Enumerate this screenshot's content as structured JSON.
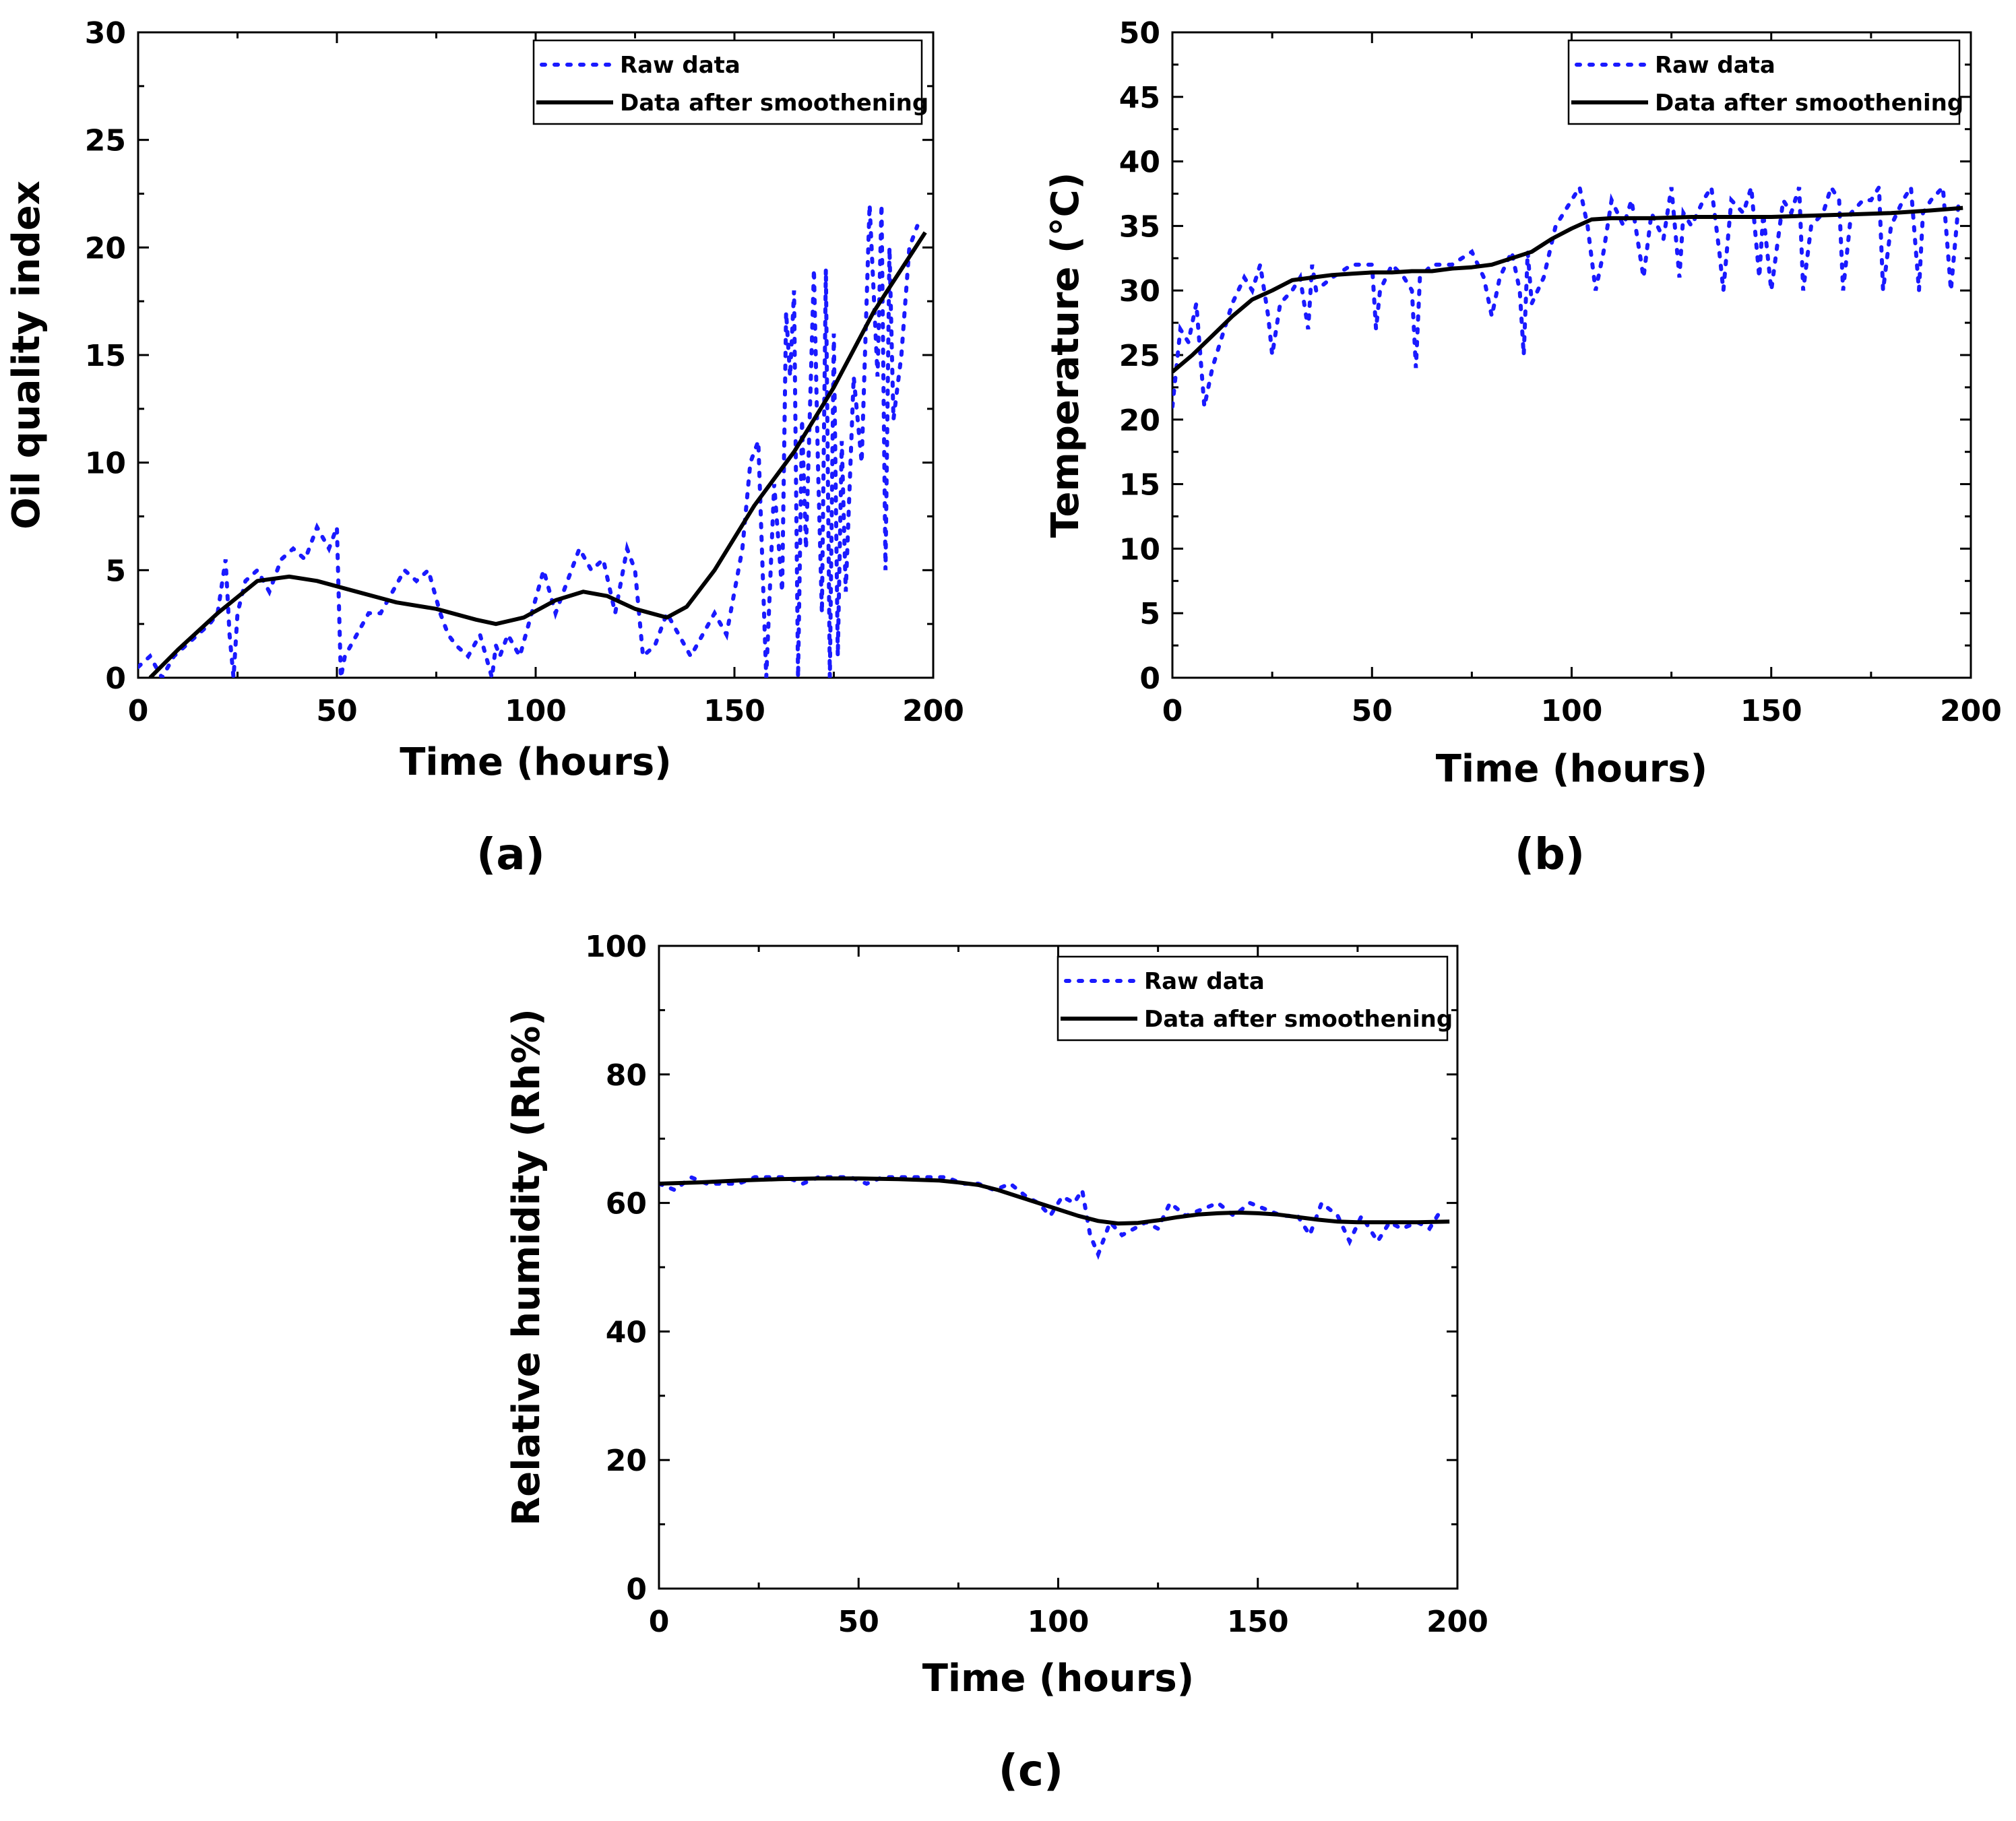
{
  "chart_data": [
    {
      "type": "line",
      "panel_label": "(a)",
      "xlabel": "Time (hours)",
      "ylabel": "Oil quality index",
      "xlim": [
        0,
        200
      ],
      "ylim": [
        0,
        30
      ],
      "xticks": [
        0,
        50,
        100,
        150,
        200
      ],
      "yticks": [
        0,
        5,
        10,
        15,
        20,
        25,
        30
      ],
      "legend": {
        "placement": "top-right",
        "raw_label": "Raw data",
        "smooth_label": "Data after smoothening"
      },
      "colors": {
        "raw": "#1a1aff",
        "smooth": "#000000"
      },
      "series": [
        {
          "name": "Raw data",
          "x": [
            0,
            3,
            6,
            9,
            12,
            15,
            18,
            20,
            22,
            23,
            24,
            25,
            27,
            30,
            33,
            36,
            39,
            42,
            45,
            48,
            50,
            51,
            52,
            55,
            58,
            61,
            64,
            67,
            70,
            73,
            76,
            78,
            80,
            83,
            86,
            89,
            90,
            91,
            93,
            96,
            99,
            102,
            105,
            108,
            111,
            114,
            117,
            120,
            123,
            125,
            127,
            130,
            133,
            136,
            139,
            142,
            145,
            148,
            150,
            152,
            154,
            156,
            158,
            160,
            162,
            163,
            164,
            165,
            166,
            167,
            168,
            170,
            171,
            172,
            173,
            174,
            175,
            176,
            177,
            178,
            180,
            182,
            184,
            185,
            186,
            187,
            188,
            189,
            190,
            192,
            194,
            196
          ],
          "y": [
            0.5,
            1,
            0,
            1,
            1.5,
            2,
            2.5,
            3,
            5.5,
            2,
            0,
            3,
            4.5,
            5,
            4,
            5.5,
            6,
            5.5,
            7,
            6,
            7,
            0,
            1,
            2,
            3,
            3,
            4,
            5,
            4.5,
            5,
            3,
            2,
            1.5,
            1,
            2,
            0,
            1.5,
            1,
            2,
            1,
            3,
            5,
            3,
            4.5,
            6,
            5,
            5.5,
            3,
            6,
            5,
            1,
            1.5,
            3,
            2,
            1,
            2,
            3,
            2,
            4,
            6,
            10,
            11,
            0,
            9,
            4,
            17,
            14,
            18,
            0,
            12,
            6,
            19,
            10,
            3,
            19,
            0,
            16,
            1,
            11,
            4,
            14,
            10,
            22,
            18,
            14,
            22,
            5,
            20,
            12,
            15,
            20,
            21
          ]
        },
        {
          "name": "Data after smoothening",
          "x": [
            3,
            10,
            20,
            30,
            38,
            45,
            55,
            65,
            75,
            85,
            90,
            97,
            105,
            112,
            118,
            125,
            133,
            138,
            145,
            155,
            165,
            175,
            185,
            198
          ],
          "y": [
            0,
            1.3,
            3,
            4.5,
            4.7,
            4.5,
            4,
            3.5,
            3.2,
            2.7,
            2.5,
            2.8,
            3.6,
            4,
            3.8,
            3.2,
            2.8,
            3.3,
            5,
            8,
            10.5,
            13.5,
            17,
            20.7
          ]
        }
      ]
    },
    {
      "type": "line",
      "panel_label": "(b)",
      "xlabel": "Time (hours)",
      "ylabel": "Temperature (°C)",
      "xlim": [
        0,
        200
      ],
      "ylim": [
        0,
        50
      ],
      "xticks": [
        0,
        50,
        100,
        150,
        200
      ],
      "yticks": [
        0,
        5,
        10,
        15,
        20,
        25,
        30,
        35,
        40,
        45,
        50
      ],
      "legend": {
        "placement": "top-right",
        "raw_label": "Raw data",
        "smooth_label": "Data after smoothening"
      },
      "colors": {
        "raw": "#1a1aff",
        "smooth": "#000000"
      },
      "series": [
        {
          "name": "Raw data",
          "x": [
            0,
            2,
            4,
            6,
            8,
            10,
            12,
            15,
            18,
            20,
            22,
            24,
            25,
            27,
            30,
            32,
            34,
            35,
            36,
            40,
            45,
            50,
            51,
            52,
            55,
            58,
            60,
            61,
            62,
            65,
            70,
            75,
            78,
            80,
            82,
            85,
            87,
            88,
            89,
            90,
            93,
            96,
            100,
            102,
            104,
            106,
            108,
            110,
            113,
            115,
            117,
            118,
            120,
            123,
            125,
            127,
            128,
            130,
            133,
            135,
            137,
            138,
            140,
            143,
            145,
            147,
            148,
            150,
            153,
            155,
            157,
            158,
            160,
            163,
            165,
            167,
            168,
            170,
            173,
            175,
            177,
            178,
            180,
            183,
            185,
            187,
            188,
            190,
            193,
            195,
            197
          ],
          "y": [
            21,
            27,
            26,
            29,
            21,
            24,
            26,
            29,
            31,
            30,
            32,
            28,
            25,
            29,
            30,
            31,
            27,
            32,
            30,
            31,
            32,
            32,
            27,
            30,
            32,
            31,
            30,
            24,
            31,
            32,
            32,
            33,
            31,
            28,
            31,
            33,
            30,
            25,
            33,
            29,
            31,
            35,
            37,
            38,
            35,
            30,
            33,
            37,
            35,
            37,
            33,
            31,
            36,
            34,
            38,
            31,
            36,
            35,
            37,
            38,
            33,
            30,
            37,
            36,
            38,
            31,
            36,
            30,
            37,
            36,
            38,
            30,
            35,
            36,
            38,
            37,
            30,
            36,
            37,
            37,
            38,
            30,
            35,
            37,
            38,
            30,
            36,
            37,
            38,
            30,
            37
          ]
        },
        {
          "name": "Data after smoothening",
          "x": [
            0,
            5,
            10,
            15,
            20,
            25,
            30,
            35,
            40,
            45,
            50,
            55,
            60,
            65,
            70,
            75,
            80,
            85,
            90,
            95,
            100,
            105,
            110,
            120,
            130,
            140,
            150,
            160,
            170,
            180,
            190,
            198
          ],
          "y": [
            23.7,
            25,
            26.5,
            28,
            29.3,
            30,
            30.8,
            31,
            31.2,
            31.3,
            31.4,
            31.4,
            31.5,
            31.5,
            31.7,
            31.8,
            32,
            32.5,
            33,
            34,
            34.8,
            35.5,
            35.6,
            35.6,
            35.7,
            35.7,
            35.7,
            35.8,
            35.9,
            36,
            36.2,
            36.4
          ]
        }
      ]
    },
    {
      "type": "line",
      "panel_label": "(c)",
      "xlabel": "Time (hours)",
      "ylabel": "Relative humidity (Rh%)",
      "xlim": [
        0,
        200
      ],
      "ylim": [
        0,
        100
      ],
      "xticks": [
        0,
        50,
        100,
        150,
        200
      ],
      "yticks": [
        0,
        20,
        40,
        60,
        80,
        100
      ],
      "legend": {
        "placement": "top-right",
        "raw_label": "Raw data",
        "smooth_label": "Data after smoothening"
      },
      "colors": {
        "raw": "#1a1aff",
        "smooth": "#000000"
      },
      "series": [
        {
          "name": "Raw data",
          "x": [
            0,
            4,
            8,
            12,
            16,
            20,
            24,
            28,
            32,
            36,
            40,
            44,
            48,
            52,
            56,
            60,
            64,
            68,
            72,
            76,
            80,
            84,
            88,
            92,
            95,
            98,
            101,
            104,
            106,
            108,
            110,
            113,
            116,
            119,
            122,
            125,
            128,
            132,
            136,
            140,
            144,
            148,
            152,
            156,
            160,
            163,
            166,
            170,
            173,
            176,
            180,
            183,
            186,
            190,
            193,
            196
          ],
          "y": [
            63,
            62,
            64,
            63,
            63,
            63,
            64,
            64,
            64,
            63,
            64,
            64,
            64,
            63,
            64,
            64,
            64,
            64,
            64,
            63,
            63,
            62,
            63,
            61,
            60,
            58,
            61,
            60,
            62,
            55,
            52,
            57,
            55,
            56,
            57,
            56,
            60,
            58,
            59,
            60,
            58,
            60,
            59,
            58,
            58,
            55,
            60,
            58,
            54,
            58,
            54,
            57,
            56,
            57,
            56,
            59
          ]
        },
        {
          "name": "Data after smoothening",
          "x": [
            0,
            10,
            20,
            30,
            40,
            50,
            60,
            70,
            75,
            80,
            85,
            90,
            95,
            100,
            105,
            110,
            115,
            120,
            125,
            130,
            135,
            140,
            145,
            150,
            155,
            160,
            165,
            170,
            175,
            180,
            190,
            198
          ],
          "y": [
            63,
            63.2,
            63.5,
            63.7,
            63.8,
            63.8,
            63.7,
            63.5,
            63.2,
            62.8,
            62,
            61,
            60,
            59,
            58,
            57.2,
            56.8,
            56.9,
            57.3,
            57.8,
            58.2,
            58.4,
            58.5,
            58.4,
            58.2,
            57.8,
            57.4,
            57.1,
            57,
            57,
            57,
            57.1
          ]
        }
      ]
    }
  ]
}
